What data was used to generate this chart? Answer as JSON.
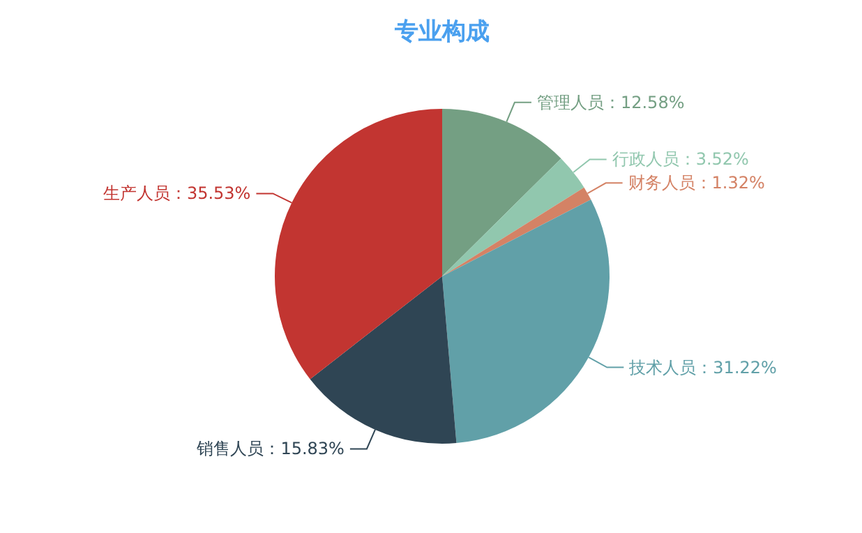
{
  "chart_data": {
    "type": "pie",
    "title": "专业构成",
    "categories": [
      "管理人员",
      "行政人员",
      "财务人员",
      "技术人员",
      "销售人员",
      "生产人员"
    ],
    "values": [
      12.58,
      3.52,
      1.32,
      31.22,
      15.83,
      35.53
    ],
    "colors": [
      "#749f83",
      "#91c7ae",
      "#d48265",
      "#61a0a8",
      "#2f4554",
      "#c23531"
    ],
    "value_labels": [
      "：12.58%",
      "：3.52%",
      "：1.32%",
      "：31.22%",
      "：15.83%",
      "：35.53%"
    ]
  }
}
